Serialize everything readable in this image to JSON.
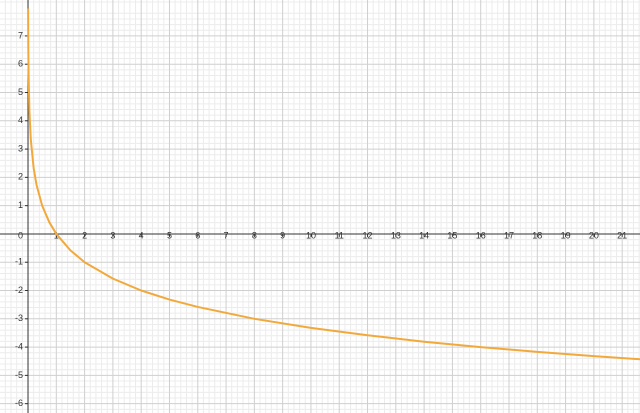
{
  "chart_data": {
    "type": "line",
    "x": [
      0.004,
      0.01,
      0.02,
      0.05,
      0.1,
      0.2,
      0.3,
      0.5,
      0.75,
      1,
      1.5,
      2,
      3,
      4,
      5,
      6,
      8,
      10,
      12,
      14,
      16,
      18,
      20,
      21.63
    ],
    "series": [
      {
        "color": "#f2a93b",
        "values": [
          7.97,
          6.64,
          5.64,
          4.32,
          3.32,
          2.32,
          1.74,
          1,
          0.42,
          0,
          -0.58,
          -1,
          -1.58,
          -2,
          -2.32,
          -2.58,
          -3,
          -3.32,
          -3.58,
          -3.81,
          -4,
          -4.17,
          -4.32,
          -4.43
        ]
      }
    ],
    "xlim": [
      -0.99,
      21.63
    ],
    "ylim": [
      -6.33,
      8.27
    ],
    "xticks": [
      0,
      1,
      2,
      3,
      4,
      5,
      6,
      7,
      8,
      9,
      10,
      11,
      12,
      13,
      14,
      15,
      16,
      17,
      18,
      19,
      20,
      21
    ],
    "yticks": [
      -6,
      -5,
      -4,
      -3,
      -2,
      -1,
      1,
      2,
      3,
      4,
      5,
      6,
      7
    ],
    "grid": true
  }
}
